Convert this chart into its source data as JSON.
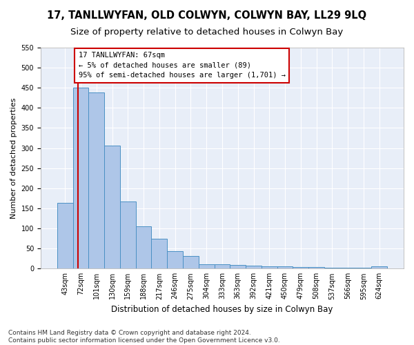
{
  "title": "17, TANLLWYFAN, OLD COLWYN, COLWYN BAY, LL29 9LQ",
  "subtitle": "Size of property relative to detached houses in Colwyn Bay",
  "xlabel": "Distribution of detached houses by size in Colwyn Bay",
  "ylabel": "Number of detached properties",
  "categories": [
    "43sqm",
    "72sqm",
    "101sqm",
    "130sqm",
    "159sqm",
    "188sqm",
    "217sqm",
    "246sqm",
    "275sqm",
    "304sqm",
    "333sqm",
    "363sqm",
    "392sqm",
    "421sqm",
    "450sqm",
    "479sqm",
    "508sqm",
    "537sqm",
    "566sqm",
    "595sqm",
    "624sqm"
  ],
  "values": [
    163,
    450,
    438,
    307,
    167,
    106,
    74,
    44,
    32,
    11,
    10,
    9,
    7,
    5,
    5,
    4,
    4,
    3,
    3,
    2,
    5
  ],
  "bar_color": "#aec6e8",
  "bar_edge_color": "#4a90c4",
  "background_color": "#e8eef8",
  "fig_background_color": "#ffffff",
  "grid_color": "#ffffff",
  "annotation_box_text": "17 TANLLWYFAN: 67sqm\n← 5% of detached houses are smaller (89)\n95% of semi-detached houses are larger (1,701) →",
  "annotation_box_facecolor": "#ffffff",
  "annotation_box_edgecolor": "#cc0000",
  "vline_color": "#cc0000",
  "vline_x_index": 0.82,
  "ylim": [
    0,
    550
  ],
  "yticks": [
    0,
    50,
    100,
    150,
    200,
    250,
    300,
    350,
    400,
    450,
    500,
    550
  ],
  "footnote": "Contains HM Land Registry data © Crown copyright and database right 2024.\nContains public sector information licensed under the Open Government Licence v3.0.",
  "title_fontsize": 10.5,
  "subtitle_fontsize": 9.5,
  "xlabel_fontsize": 8.5,
  "ylabel_fontsize": 8,
  "tick_fontsize": 7,
  "annotation_fontsize": 7.5,
  "footnote_fontsize": 6.5
}
